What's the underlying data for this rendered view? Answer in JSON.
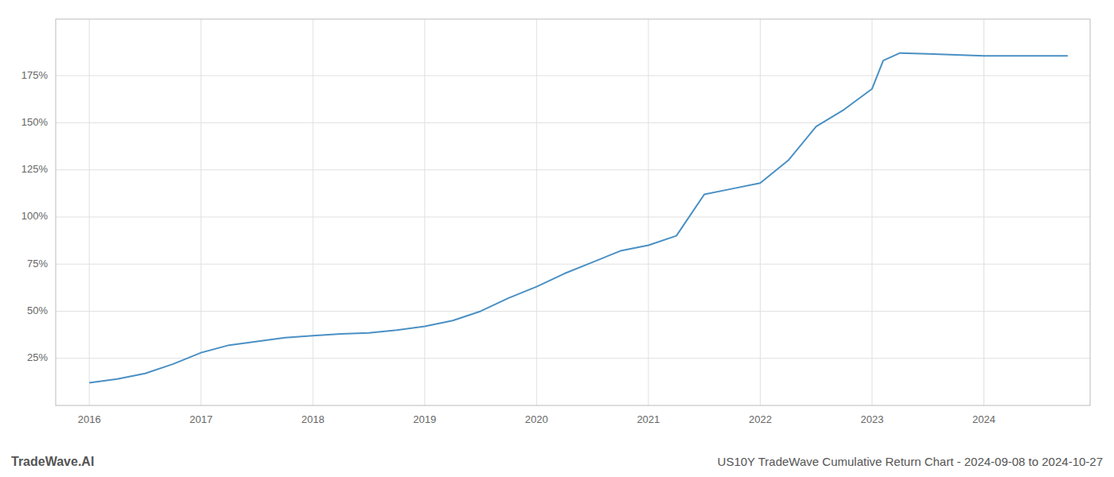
{
  "chart_data": {
    "type": "line",
    "title": "US10Y TradeWave Cumulative Return Chart - 2024-09-08 to 2024-10-27",
    "annotations": [
      "TradeWave.AI"
    ],
    "color": "#4a90c4",
    "x": [
      2016.0,
      2016.25,
      2016.5,
      2016.75,
      2017.0,
      2017.25,
      2017.5,
      2017.75,
      2018.0,
      2018.25,
      2018.5,
      2018.75,
      2019.0,
      2019.25,
      2019.5,
      2019.75,
      2020.0,
      2020.25,
      2020.5,
      2020.75,
      2021.0,
      2021.25,
      2021.5,
      2021.75,
      2022.0,
      2022.25,
      2022.5,
      2022.75,
      2023.0,
      2023.1,
      2023.25,
      2023.5,
      2023.75,
      2024.0,
      2024.25,
      2024.5,
      2024.75
    ],
    "values": [
      12.0,
      14.0,
      17.0,
      22.0,
      28.0,
      32.0,
      34.0,
      36.0,
      37.0,
      38.0,
      38.5,
      40.0,
      42.0,
      45.0,
      50.0,
      57.0,
      63.0,
      70.0,
      76.0,
      82.0,
      85.0,
      90.0,
      112.0,
      115.0,
      118.0,
      130.0,
      148.0,
      157.0,
      168.0,
      183.0,
      187.0,
      186.5,
      186.0,
      185.5,
      185.5,
      185.5,
      185.5
    ],
    "xlim": [
      2015.7,
      2024.95
    ],
    "ylim": [
      0,
      205
    ],
    "xticks": [
      2016,
      2017,
      2018,
      2019,
      2020,
      2021,
      2022,
      2023,
      2024
    ],
    "yticks": [
      {
        "value": 25,
        "label": "25%"
      },
      {
        "value": 50,
        "label": "50%"
      },
      {
        "value": 75,
        "label": "75%"
      },
      {
        "value": 100,
        "label": "100%"
      },
      {
        "value": 125,
        "label": "125%"
      },
      {
        "value": 150,
        "label": "150%"
      },
      {
        "value": 175,
        "label": "175%"
      }
    ],
    "grid": true
  }
}
